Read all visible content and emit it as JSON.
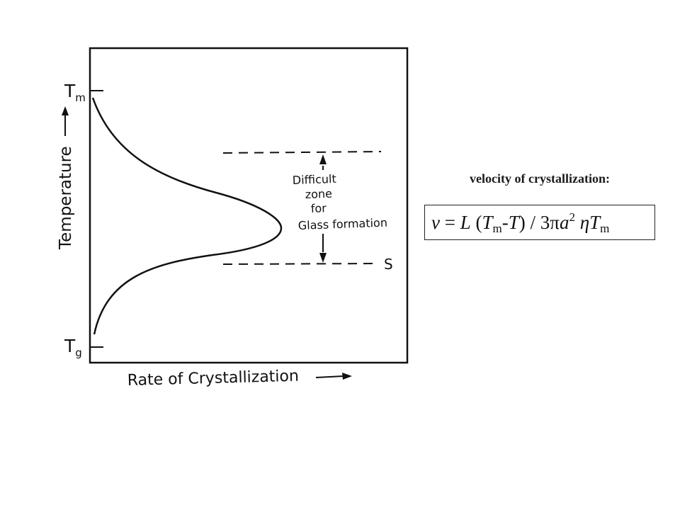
{
  "diagram": {
    "y_axis_label": "Temperature",
    "x_axis_label": "Rate of Crystallization",
    "tick_top": "m",
    "tick_bottom": "g",
    "zone_label_lines": [
      "Difficult",
      "zone",
      "for",
      "Glass formation"
    ],
    "lower_line_label": "S"
  },
  "caption": "velocity of crystallization:",
  "formula": {
    "v": "v",
    "eq": " = ",
    "L": "L",
    "open": " (",
    "T": "T",
    "sub_m": "m",
    "minus": "-",
    "T2": "T",
    "close_div": ") / 3",
    "pi": "π",
    "a": "a",
    "sup_2": "2",
    "eta": " η",
    "T3": "T",
    "sub_m2": "m"
  }
}
